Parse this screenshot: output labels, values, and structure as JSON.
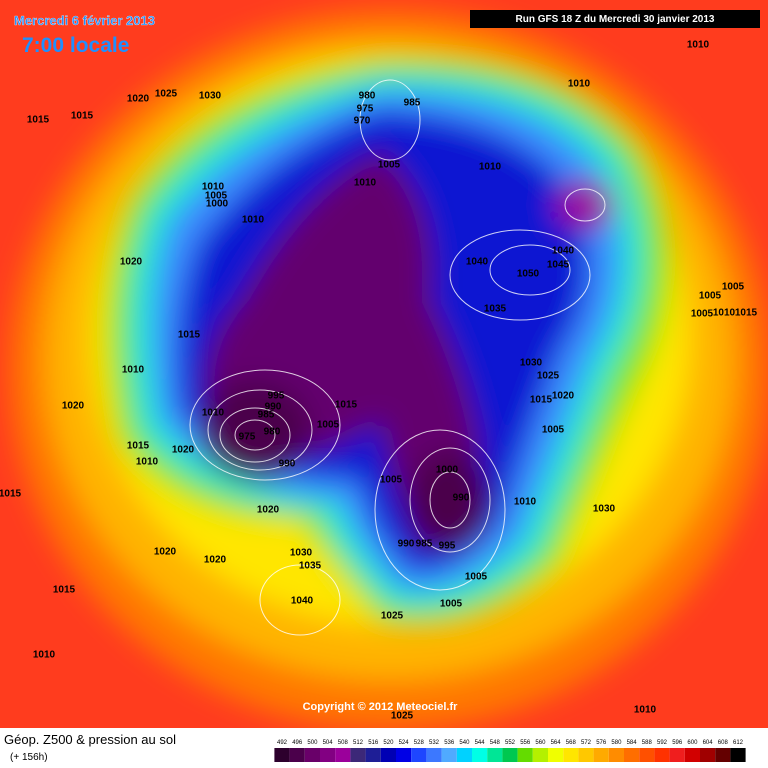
{
  "header": {
    "date": "Mercredi 6 février 2013",
    "time": "7:00 locale",
    "run": "Run GFS 18 Z du Mercredi 30 janvier 2013"
  },
  "isobar_labels": [
    "1020",
    "1025",
    "1030",
    "1015",
    "1015",
    "980",
    "975",
    "970",
    "985",
    "1005",
    "1010",
    "1010",
    "1010",
    "1005",
    "1000",
    "1010",
    "1010",
    "1010",
    "1020",
    "1040",
    "1050",
    "1045",
    "1040",
    "1035",
    "1005",
    "1005",
    "1005",
    "1015",
    "1010",
    "1015",
    "1010",
    "1030",
    "1025",
    "1020",
    "1015",
    "1020",
    "995",
    "990",
    "985",
    "980",
    "1010",
    "975",
    "990",
    "1005",
    "1015",
    "1005",
    "1015",
    "1020",
    "1010",
    "1015",
    "1000",
    "990",
    "1005",
    "1010",
    "1030",
    "1020",
    "990",
    "985",
    "995",
    "1020",
    "1020",
    "1030",
    "1035",
    "1005",
    "1040",
    "1005",
    "1025",
    "1015",
    "1010",
    "1010",
    "1025"
  ],
  "copyright": "Copyright © 2012 Meteociel.fr",
  "footer": {
    "title": "Géop. Z500 & pression au sol",
    "lead": "(+ 156h)"
  },
  "colorbar": {
    "values": [
      492,
      496,
      500,
      504,
      508,
      512,
      516,
      520,
      524,
      528,
      532,
      536,
      540,
      544,
      548,
      552,
      556,
      560,
      564,
      568,
      572,
      576,
      580,
      584,
      588,
      592,
      596,
      600,
      604,
      608,
      612
    ],
    "colors": [
      "#2d002d",
      "#4b004b",
      "#690069",
      "#820082",
      "#9b009b",
      "#3c2878",
      "#1e1e96",
      "#0000b4",
      "#0000e6",
      "#1e46ff",
      "#3c78ff",
      "#50aaff",
      "#00d2ff",
      "#00ffe6",
      "#00e696",
      "#00c850",
      "#64dc00",
      "#b4f000",
      "#f0ff00",
      "#ffe600",
      "#ffc800",
      "#ffaa00",
      "#ff8c00",
      "#ff6e00",
      "#ff5000",
      "#ff3200",
      "#f01e1e",
      "#d20000",
      "#a00000",
      "#640000",
      "#000000"
    ]
  }
}
